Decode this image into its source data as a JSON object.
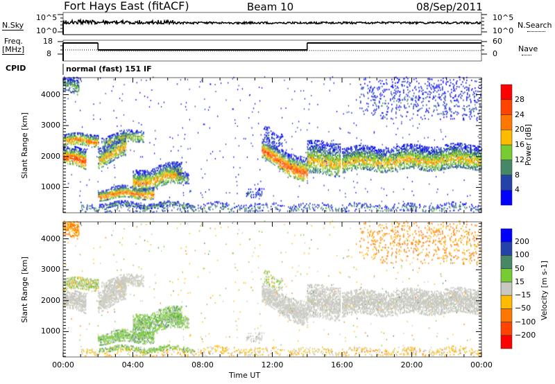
{
  "header": {
    "station": "Fort Hays East (fitACF)",
    "beam": "Beam 10",
    "date": "08/Sep/2011"
  },
  "noise_panel": {
    "left_label": "N.Sky",
    "right_label": "N.Search",
    "left_ticks": [
      "10^5",
      "10^0"
    ],
    "right_ticks": [
      "10^5",
      "10^0"
    ]
  },
  "freq_panel": {
    "left_label_1": "Freq.",
    "left_label_2": "[MHz]",
    "right_label": "Nave",
    "left_ticks": [
      "18",
      "8"
    ],
    "right_ticks": [
      "60",
      "0"
    ]
  },
  "cpid": {
    "label": "CPID",
    "value": "normal (fast) 151 IF"
  },
  "chart_data": [
    {
      "type": "heatmap",
      "title": "Power",
      "xlabel": "Time UT",
      "ylabel": "Slant Range [km]",
      "xlim_hours": [
        0,
        24
      ],
      "ylim_km": [
        180,
        4550
      ],
      "yticks": [
        "4000",
        "3000",
        "2000",
        "1000"
      ],
      "colorbar": {
        "label": "Power [dB]",
        "tick_labels": [
          "28",
          "24",
          "20",
          "16",
          "12",
          "8",
          "4"
        ],
        "colors": [
          "#0000ff",
          "#2244aa",
          "#448866",
          "#77cc33",
          "#ffbb00",
          "#ff7700",
          "#ff4400",
          "#ff0000"
        ]
      }
    },
    {
      "type": "heatmap",
      "title": "Velocity",
      "xlabel": "Time UT",
      "ylabel": "Slant Range [km]",
      "xlim_hours": [
        0,
        24
      ],
      "ylim_km": [
        180,
        4550
      ],
      "yticks": [
        "4000",
        "3000",
        "2000",
        "1000"
      ],
      "colorbar": {
        "label": "Velocity [m s-1]",
        "tick_labels": [
          "200",
          "100",
          "50",
          "15",
          "−15",
          "−50",
          "−100",
          "−200"
        ],
        "colors": [
          "#0000ff",
          "#2244aa",
          "#448866",
          "#77cc33",
          "#c8c8c0",
          "#ffbb00",
          "#ff7700",
          "#ff4400",
          "#ff0000"
        ]
      }
    }
  ],
  "echo_regions": [
    {
      "t0": 0,
      "t1": 1.3,
      "r0": [
        1750,
        2300
      ],
      "r1": [
        1550,
        2200
      ],
      "power": 27,
      "vel": 0,
      "density": 0.9
    },
    {
      "t0": 0,
      "t1": 2.0,
      "r0": [
        2300,
        2700
      ],
      "r1": [
        2350,
        2750
      ],
      "power": 23,
      "vel": 5,
      "density": 0.8
    },
    {
      "t0": 0,
      "t1": 0.9,
      "r0": [
        4100,
        4550
      ],
      "r1": [
        3900,
        4550
      ],
      "power": 12,
      "vel": -60,
      "density": 0.7
    },
    {
      "t0": 2.0,
      "t1": 3.6,
      "r0": [
        1650,
        2300
      ],
      "r1": [
        2000,
        2700
      ],
      "power": 20,
      "vel": 0,
      "density": 0.85
    },
    {
      "t0": 2.2,
      "t1": 4.6,
      "r0": [
        2300,
        2650
      ],
      "r1": [
        2500,
        2900
      ],
      "power": 16,
      "vel": 0,
      "density": 0.7
    },
    {
      "t0": 2.0,
      "t1": 5.2,
      "r0": [
        600,
        950
      ],
      "r1": [
        650,
        1050
      ],
      "power": 24,
      "vel": 30,
      "density": 0.9
    },
    {
      "t0": 4.0,
      "t1": 6.8,
      "r0": [
        900,
        1550
      ],
      "r1": [
        1100,
        1800
      ],
      "power": 21,
      "vel": 30,
      "density": 0.85
    },
    {
      "t0": 6.5,
      "t1": 7.2,
      "r0": [
        1100,
        1550
      ],
      "r1": [
        1150,
        1500
      ],
      "power": 14,
      "vel": 25,
      "density": 0.7
    },
    {
      "t0": 1.0,
      "t1": 24,
      "r0": [
        180,
        480
      ],
      "r1": [
        180,
        480
      ],
      "power": 10,
      "vel": -25,
      "density": 0.25
    },
    {
      "t0": 2.0,
      "t1": 7.5,
      "r0": [
        350,
        500
      ],
      "r1": [
        350,
        500
      ],
      "power": 12,
      "vel": 30,
      "density": 0.6
    },
    {
      "t0": 11.4,
      "t1": 14.0,
      "r0": [
        1900,
        2500
      ],
      "r1": [
        1100,
        1900
      ],
      "power": 26,
      "vel": 0,
      "density": 0.85
    },
    {
      "t0": 14.0,
      "t1": 15.9,
      "r0": [
        1400,
        2450
      ],
      "r1": [
        1400,
        2450
      ],
      "power": 19,
      "vel": 0,
      "density": 0.75
    },
    {
      "t0": 16.0,
      "t1": 24,
      "r0": [
        1500,
        2300
      ],
      "r1": [
        1600,
        2400
      ],
      "power": 19,
      "vel": 0,
      "density": 0.8
    },
    {
      "t0": 17.0,
      "t1": 24,
      "r0": [
        3300,
        4550
      ],
      "r1": [
        3100,
        4550
      ],
      "power": 6,
      "vel": -60,
      "density": 0.15
    },
    {
      "t0": 11.5,
      "t1": 12.6,
      "r0": [
        2500,
        2950
      ],
      "r1": [
        2200,
        2700
      ],
      "power": 6,
      "vel": 10,
      "density": 0.3
    },
    {
      "t0": 10.5,
      "t1": 11.5,
      "r0": [
        700,
        1000
      ],
      "r1": [
        600,
        900
      ],
      "power": 8,
      "vel": 0,
      "density": 0.3
    }
  ],
  "time_ticks": [
    "00:00",
    "04:00",
    "08:00",
    "12:00",
    "16:00",
    "20:00",
    "00:00"
  ],
  "time_label": "Time UT",
  "freq_series": [
    {
      "t0": 0,
      "t1": 2.0,
      "mhz": 16.9,
      "nave": 20
    },
    {
      "t0": 2.0,
      "t1": 14.0,
      "mhz": 11.3,
      "nave": 14
    },
    {
      "t0": 14.0,
      "t1": 24,
      "mhz": 16.9,
      "nave": 17
    }
  ],
  "noise_level_exp": 3.4
}
